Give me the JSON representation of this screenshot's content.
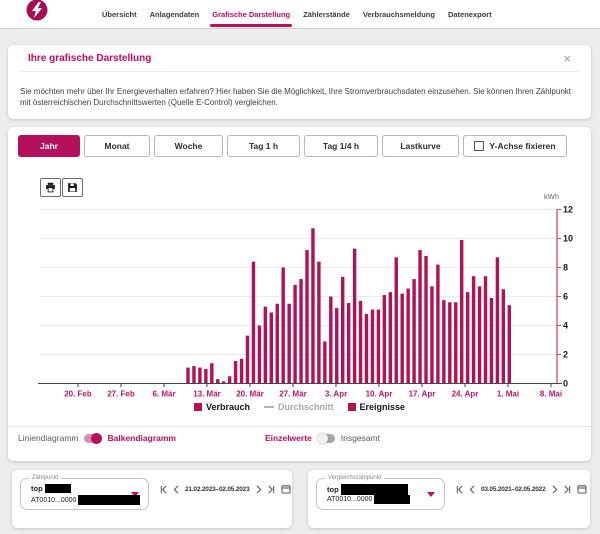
{
  "colors": {
    "accent": "#c20a5e",
    "bar": "#b11256",
    "axis_line": "#d6418a",
    "muted_legend": "#a9a9a9",
    "tab_active_bg": "#b5105c"
  },
  "header": {
    "logo_icon": "energy-bolt-logo",
    "active_nav": "Grafische Darstellung",
    "nav_items": [
      {
        "label": "Übersicht"
      },
      {
        "label": "Anlagendaten"
      },
      {
        "label": "Grafische Darstellung"
      },
      {
        "label": "Zählerstände"
      },
      {
        "label": "Verbrauchsmeldung"
      },
      {
        "label": "Datenexport"
      }
    ]
  },
  "info_card": {
    "title": "Ihre grafische Darstellung",
    "close_icon": "close-icon",
    "close_glyph": "×",
    "description": "Sie möchten mehr über Ihr Energieverhalten erfahren? Hier haben Sie die Möglichkeit, Ihre Stromverbrauchsdaten einzusehen. Sie können Ihren Zählpunkt mit österreichischen Durchschnittswerten (Quelle E-Control) vergleichen."
  },
  "toolbar": {
    "active_tab": "Jahr",
    "tabs": [
      {
        "label": "Jahr"
      },
      {
        "label": "Monat"
      },
      {
        "label": "Woche"
      },
      {
        "label": "Tag 1 h"
      },
      {
        "label": "Tag 1/4 h"
      },
      {
        "label": "Lastkurve"
      }
    ],
    "fix_y_axis_label": "Y-Achse fixieren",
    "fix_y_axis_checked": false
  },
  "chart_toolbar": {
    "icons": [
      "printer-icon",
      "save-icon"
    ]
  },
  "chart_data": {
    "type": "bar",
    "title": "",
    "xlabel": "",
    "ylabel": "kWh",
    "ylim": [
      0,
      12
    ],
    "yticks": [
      0,
      2,
      4,
      6,
      8,
      10,
      12
    ],
    "grid": true,
    "legend_position": "bottom",
    "xticklabels": [
      "20. Feb",
      "27. Feb",
      "6. Mär",
      "13. Mär",
      "20. Mär",
      "27. Mär",
      "3. Apr",
      "10. Apr",
      "17. Apr",
      "24. Apr",
      "1. Mai",
      "8. Mai"
    ],
    "series": [
      {
        "name": "Verbrauch",
        "color": "#b11256",
        "interval": "daily",
        "first_bar_label": "10. Mär",
        "values": [
          1.1,
          1.2,
          1.1,
          1.0,
          1.4,
          0.3,
          0.15,
          0.5,
          1.55,
          1.7,
          3.3,
          8.4,
          4.0,
          5.3,
          4.9,
          5.5,
          8.0,
          5.5,
          6.8,
          7.2,
          9.2,
          10.7,
          8.4,
          2.9,
          6.0,
          5.2,
          7.35,
          5.55,
          9.3,
          5.7,
          4.8,
          5.1,
          5.1,
          6.1,
          6.3,
          8.7,
          6.2,
          6.55,
          7.2,
          9.2,
          8.8,
          6.7,
          8.2,
          5.75,
          5.6,
          5.6,
          9.9,
          6.3,
          7.4,
          6.7,
          7.4,
          5.9,
          8.7,
          6.5,
          5.4
        ]
      }
    ],
    "legend": [
      {
        "label": "Verbrauch",
        "marker": "square",
        "color": "#b11256"
      },
      {
        "label": "Durchschnitt",
        "marker": "line",
        "color": "#a9a9a9"
      },
      {
        "label": "Ereignisse",
        "marker": "square",
        "color": "#b11256"
      }
    ]
  },
  "display_controls": {
    "chart_style": {
      "left_label": "Liniendiagramm",
      "right_label": "Balkendiagramm",
      "selected": "Balkendiagramm"
    },
    "value_mode": {
      "left_label": "Einzelwerte",
      "right_label": "Insgesamt",
      "selected": "Einzelwerte"
    }
  },
  "meter_panel": {
    "field_label": "Zählpunkt",
    "meter_name": "top",
    "meter_id": "AT0010...0000",
    "date_range": "21.02.2023–02.05.2023",
    "pager_icons": [
      "first-page-icon",
      "previous-icon",
      "next-icon",
      "last-page-icon",
      "calendar-icon"
    ]
  },
  "comparison_panel": {
    "field_label": "Vergleichszählpunkt",
    "meter_name": "top",
    "meter_id": "AT0010...0000",
    "date_range": "03.05.2021–02.05.2022",
    "pager_icons": [
      "first-page-icon",
      "previous-icon",
      "next-icon",
      "last-page-icon",
      "calendar-icon"
    ]
  }
}
